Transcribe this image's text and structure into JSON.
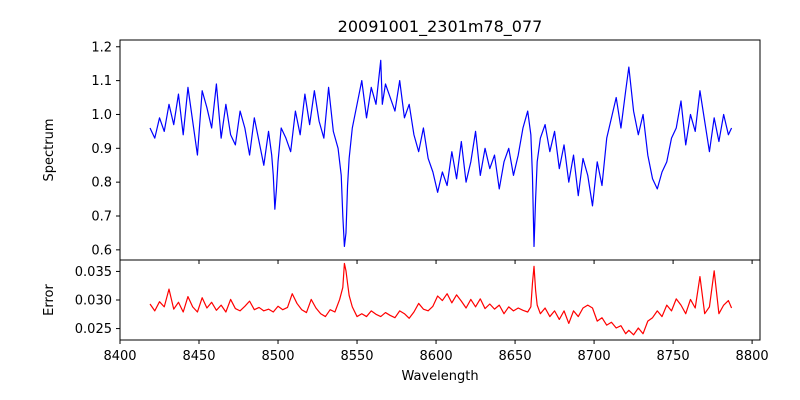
{
  "chart_data": [
    {
      "type": "line",
      "panel": "top",
      "title": "20091001_2301m78_077",
      "xlabel": "",
      "ylabel": "Spectrum",
      "xlim": [
        8400,
        8805
      ],
      "ylim": [
        0.57,
        1.22
      ],
      "xticks": [
        8400,
        8450,
        8500,
        8550,
        8600,
        8650,
        8700,
        8750,
        8800
      ],
      "xtick_labels_visible": false,
      "yticks": [
        0.6,
        0.7,
        0.8,
        0.9,
        1.0,
        1.1,
        1.2
      ],
      "ytick_labels": [
        "0.6",
        "0.7",
        "0.8",
        "0.9",
        "1.0",
        "1.1",
        "1.2"
      ],
      "grid": false,
      "series": [
        {
          "color": "#0000ff",
          "x": [
            8419,
            8422,
            8425,
            8428,
            8431,
            8434,
            8437,
            8440,
            8443,
            8446,
            8449,
            8452,
            8455,
            8458,
            8461,
            8464,
            8467,
            8470,
            8473,
            8476,
            8479,
            8482,
            8485,
            8488,
            8491,
            8494,
            8496,
            8497,
            8498,
            8499,
            8500,
            8502,
            8505,
            8508,
            8511,
            8514,
            8517,
            8520,
            8523,
            8526,
            8529,
            8532,
            8535,
            8538,
            8540,
            8541,
            8542,
            8543,
            8544,
            8545,
            8547,
            8550,
            8553,
            8556,
            8559,
            8562,
            8565,
            8566,
            8568,
            8571,
            8574,
            8577,
            8580,
            8583,
            8586,
            8589,
            8592,
            8595,
            8598,
            8601,
            8604,
            8607,
            8610,
            8613,
            8616,
            8619,
            8622,
            8625,
            8628,
            8631,
            8634,
            8637,
            8640,
            8643,
            8646,
            8649,
            8652,
            8655,
            8658,
            8660,
            8661,
            8662,
            8663,
            8664,
            8666,
            8669,
            8672,
            8675,
            8678,
            8681,
            8684,
            8687,
            8690,
            8693,
            8696,
            8699,
            8702,
            8705,
            8708,
            8711,
            8714,
            8717,
            8720,
            8722,
            8725,
            8728,
            8731,
            8734,
            8737,
            8740,
            8743,
            8746,
            8749,
            8752,
            8755,
            8758,
            8761,
            8764,
            8767,
            8770,
            8773,
            8776,
            8779,
            8782,
            8785,
            8787
          ],
          "y": [
            0.96,
            0.93,
            0.99,
            0.95,
            1.03,
            0.97,
            1.06,
            0.94,
            1.08,
            0.98,
            0.88,
            1.07,
            1.02,
            0.96,
            1.09,
            0.93,
            1.03,
            0.94,
            0.91,
            1.01,
            0.96,
            0.88,
            0.99,
            0.92,
            0.85,
            0.95,
            0.88,
            0.82,
            0.72,
            0.78,
            0.86,
            0.96,
            0.93,
            0.89,
            1.01,
            0.94,
            1.06,
            0.97,
            1.07,
            0.98,
            0.93,
            1.08,
            0.95,
            0.9,
            0.82,
            0.7,
            0.61,
            0.65,
            0.79,
            0.87,
            0.96,
            1.03,
            1.1,
            0.99,
            1.08,
            1.03,
            1.16,
            1.03,
            1.09,
            1.05,
            1.01,
            1.1,
            0.99,
            1.03,
            0.94,
            0.89,
            0.96,
            0.87,
            0.83,
            0.77,
            0.83,
            0.79,
            0.89,
            0.81,
            0.92,
            0.8,
            0.86,
            0.95,
            0.82,
            0.9,
            0.84,
            0.88,
            0.78,
            0.86,
            0.9,
            0.82,
            0.88,
            0.96,
            1.01,
            0.94,
            0.82,
            0.61,
            0.75,
            0.86,
            0.93,
            0.97,
            0.89,
            0.95,
            0.84,
            0.91,
            0.8,
            0.88,
            0.76,
            0.87,
            0.82,
            0.73,
            0.86,
            0.79,
            0.93,
            0.99,
            1.05,
            0.96,
            1.07,
            1.14,
            1.01,
            0.94,
            1.0,
            0.88,
            0.81,
            0.78,
            0.83,
            0.86,
            0.93,
            0.96,
            1.04,
            0.91,
            1.0,
            0.95,
            1.07,
            0.98,
            0.89,
            0.99,
            0.92,
            1.0,
            0.94,
            0.96
          ]
        }
      ]
    },
    {
      "type": "line",
      "panel": "bottom",
      "title": "",
      "xlabel": "Wavelength",
      "ylabel": "Error",
      "xlim": [
        8400,
        8805
      ],
      "ylim": [
        0.023,
        0.037
      ],
      "xticks": [
        8400,
        8450,
        8500,
        8550,
        8600,
        8650,
        8700,
        8750,
        8800
      ],
      "xtick_labels": [
        "8400",
        "8450",
        "8500",
        "8550",
        "8600",
        "8650",
        "8700",
        "8750",
        "8800"
      ],
      "yticks": [
        0.025,
        0.03,
        0.035
      ],
      "ytick_labels": [
        "0.025",
        "0.030",
        "0.035"
      ],
      "grid": false,
      "series": [
        {
          "color": "#ff0000",
          "x": [
            8419,
            8422,
            8425,
            8428,
            8431,
            8434,
            8437,
            8440,
            8443,
            8446,
            8449,
            8452,
            8455,
            8458,
            8461,
            8464,
            8467,
            8470,
            8473,
            8476,
            8479,
            8482,
            8485,
            8488,
            8491,
            8494,
            8497,
            8500,
            8503,
            8506,
            8509,
            8512,
            8515,
            8518,
            8521,
            8524,
            8527,
            8530,
            8533,
            8536,
            8539,
            8541,
            8542,
            8543,
            8544,
            8545,
            8547,
            8550,
            8553,
            8556,
            8559,
            8562,
            8565,
            8568,
            8571,
            8574,
            8577,
            8580,
            8583,
            8586,
            8589,
            8592,
            8595,
            8598,
            8601,
            8604,
            8607,
            8610,
            8613,
            8616,
            8619,
            8622,
            8625,
            8628,
            8631,
            8634,
            8637,
            8640,
            8643,
            8646,
            8649,
            8652,
            8655,
            8658,
            8660,
            8661,
            8662,
            8663,
            8664,
            8666,
            8669,
            8672,
            8675,
            8678,
            8681,
            8684,
            8687,
            8690,
            8693,
            8696,
            8699,
            8702,
            8705,
            8708,
            8711,
            8714,
            8717,
            8720,
            8722,
            8725,
            8728,
            8731,
            8734,
            8737,
            8740,
            8743,
            8746,
            8749,
            8752,
            8755,
            8758,
            8761,
            8764,
            8767,
            8770,
            8773,
            8776,
            8779,
            8782,
            8785,
            8787
          ],
          "y": [
            0.0293,
            0.0281,
            0.0297,
            0.0288,
            0.0319,
            0.0284,
            0.0296,
            0.0279,
            0.0306,
            0.0288,
            0.0279,
            0.0304,
            0.0286,
            0.0296,
            0.0282,
            0.0291,
            0.0279,
            0.0301,
            0.0285,
            0.0281,
            0.0289,
            0.0298,
            0.0283,
            0.0287,
            0.0281,
            0.0284,
            0.0279,
            0.0289,
            0.0283,
            0.0287,
            0.0311,
            0.0294,
            0.0283,
            0.0278,
            0.0301,
            0.0286,
            0.0276,
            0.0271,
            0.0283,
            0.0279,
            0.0301,
            0.0322,
            0.0364,
            0.0351,
            0.0329,
            0.0308,
            0.0288,
            0.0271,
            0.0276,
            0.0271,
            0.0281,
            0.0275,
            0.0271,
            0.0278,
            0.0273,
            0.0269,
            0.0281,
            0.0276,
            0.0268,
            0.0279,
            0.0294,
            0.0284,
            0.0281,
            0.0289,
            0.0307,
            0.0299,
            0.0311,
            0.0295,
            0.0309,
            0.0298,
            0.0286,
            0.0301,
            0.0288,
            0.0302,
            0.0285,
            0.0293,
            0.0284,
            0.0291,
            0.0276,
            0.0288,
            0.0281,
            0.0286,
            0.0282,
            0.0279,
            0.0288,
            0.0329,
            0.0359,
            0.0317,
            0.0291,
            0.0276,
            0.0286,
            0.0271,
            0.0281,
            0.0266,
            0.0281,
            0.0259,
            0.0281,
            0.0271,
            0.0286,
            0.0291,
            0.0286,
            0.0263,
            0.0269,
            0.0256,
            0.0261,
            0.0251,
            0.0255,
            0.0241,
            0.0247,
            0.0239,
            0.0251,
            0.0241,
            0.0263,
            0.0269,
            0.0281,
            0.0271,
            0.0291,
            0.0281,
            0.0302,
            0.0291,
            0.0276,
            0.0301,
            0.0286,
            0.0341,
            0.0276,
            0.0288,
            0.0351,
            0.0276,
            0.0291,
            0.0299,
            0.0286
          ]
        }
      ]
    }
  ]
}
